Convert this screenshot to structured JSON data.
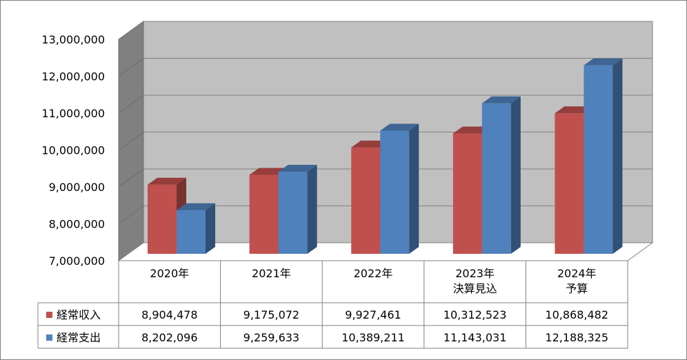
{
  "chart_data": {
    "type": "bar",
    "title": "",
    "xlabel": "",
    "ylabel": "",
    "ylim": [
      7000000,
      13000000
    ],
    "yticks": [
      7000000,
      8000000,
      9000000,
      10000000,
      11000000,
      12000000,
      13000000
    ],
    "ytick_labels": [
      "7,000,000",
      "8,000,000",
      "9,000,000",
      "10,000,000",
      "11,000,000",
      "12,000,000",
      "13,000,000"
    ],
    "categories": [
      "2020年",
      "2021年",
      "2022年",
      "2023年\n決算見込",
      "2024年\n予算"
    ],
    "grid": true,
    "legend": "data-table-left",
    "style": "3d-clustered-column",
    "series": [
      {
        "name": "経常収入",
        "color": "#c0504d",
        "values": [
          8904478,
          9175072,
          9927461,
          10312523,
          10868482
        ],
        "value_labels": [
          "8,904,478",
          "9,175,072",
          "9,927,461",
          "10,312,523",
          "10,868,482"
        ]
      },
      {
        "name": "経常支出",
        "color": "#4f81bd",
        "values": [
          8202096,
          9259633,
          10389211,
          11143031,
          12188325
        ],
        "value_labels": [
          "8,202,096",
          "9,259,633",
          "10,389,211",
          "11,143,031",
          "12,188,325"
        ]
      }
    ]
  }
}
